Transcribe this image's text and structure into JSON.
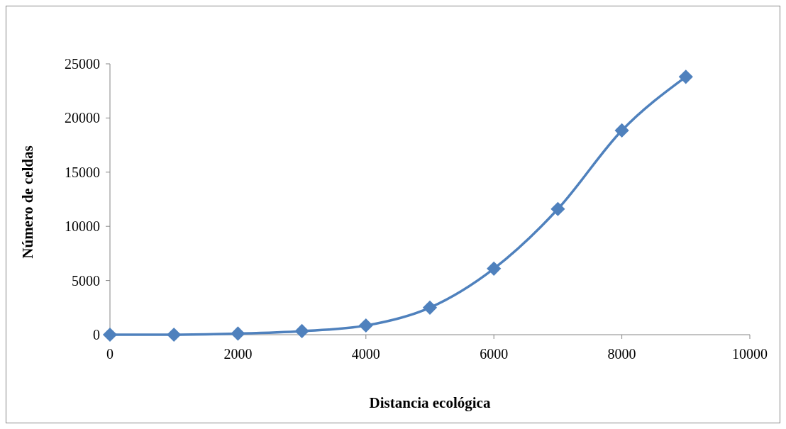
{
  "chart_data": {
    "type": "line",
    "xlabel": "Distancia ecológica",
    "ylabel": "Número de celdas",
    "x": [
      0,
      1000,
      2000,
      3000,
      4000,
      5000,
      6000,
      7000,
      8000,
      9000
    ],
    "series": [
      {
        "color": "#4f81bd",
        "values": [
          0,
          0,
          100,
          330,
          850,
          2500,
          6100,
          11600,
          18850,
          23800
        ]
      }
    ],
    "xlim": [
      0,
      10000
    ],
    "xticks": [
      0,
      2000,
      4000,
      6000,
      8000,
      10000
    ],
    "ylim": [
      0,
      25000
    ],
    "yticks": [
      0,
      5000,
      10000,
      15000,
      20000,
      25000
    ],
    "marker": "diamond"
  }
}
